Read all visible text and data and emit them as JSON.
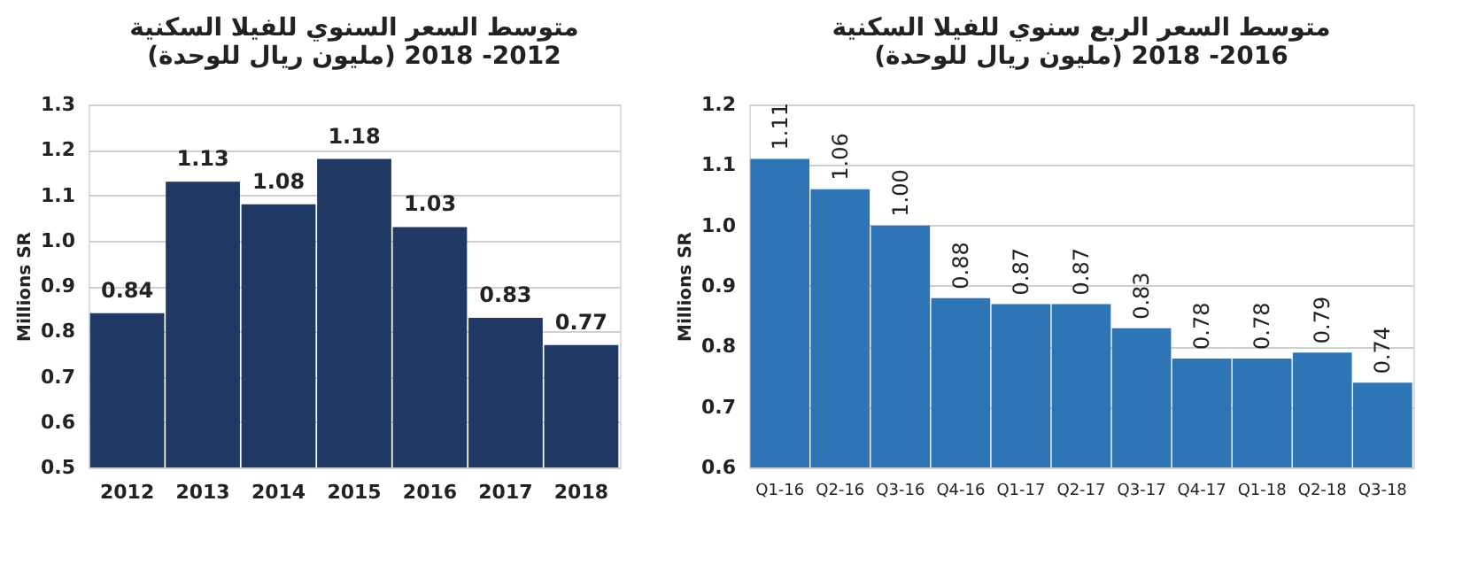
{
  "chart_data": [
    {
      "type": "bar",
      "title": [
        "متوسط السعر السنوي للفيلا السكنية",
        "(مليون ريال للوحدة) 2012- 2018"
      ],
      "ylabel": "Millions SR",
      "categories": [
        "2012",
        "2013",
        "2014",
        "2015",
        "2016",
        "2017",
        "2018"
      ],
      "values": [
        0.84,
        1.13,
        1.08,
        1.18,
        1.03,
        0.83,
        0.77
      ],
      "color": "#1f3864",
      "ylim": [
        0.5,
        1.3
      ],
      "yticks": [
        0.5,
        0.6,
        0.7,
        0.8,
        0.9,
        {
          "value": 1,
          "label": "1.0"
        },
        1.1,
        1.2,
        1.3
      ],
      "grid": "y",
      "data_labels": true
    },
    {
      "type": "bar",
      "title": [
        "متوسط السعر الربع سنوي للفيلا السكنية",
        "(مليون ريال للوحدة) 2016- 2018"
      ],
      "ylabel": "Millions SR",
      "categories": [
        "Q1-16",
        "Q2-16",
        "Q3-16",
        "Q4-16",
        "Q1-17",
        "Q2-17",
        "Q3-17",
        "Q4-17",
        "Q1-18",
        "Q2-18",
        "Q3-18"
      ],
      "values": [
        1.11,
        1.06,
        1.0,
        0.88,
        0.87,
        0.87,
        0.83,
        0.78,
        0.78,
        0.79,
        0.74
      ],
      "color": "#2e75b6",
      "value_labels": [
        "1.11",
        "1.06",
        "1.00",
        "0.88",
        "0.87",
        "0.87",
        "0.83",
        "0.78",
        "0.78",
        "0.79",
        "0.74"
      ],
      "ylim": [
        0.6,
        1.2
      ],
      "yticks": [
        0.6,
        0.7,
        0.8,
        0.9,
        {
          "value": 1,
          "label": "1.0"
        },
        1.1,
        1.2
      ],
      "grid": "y"
    }
  ]
}
